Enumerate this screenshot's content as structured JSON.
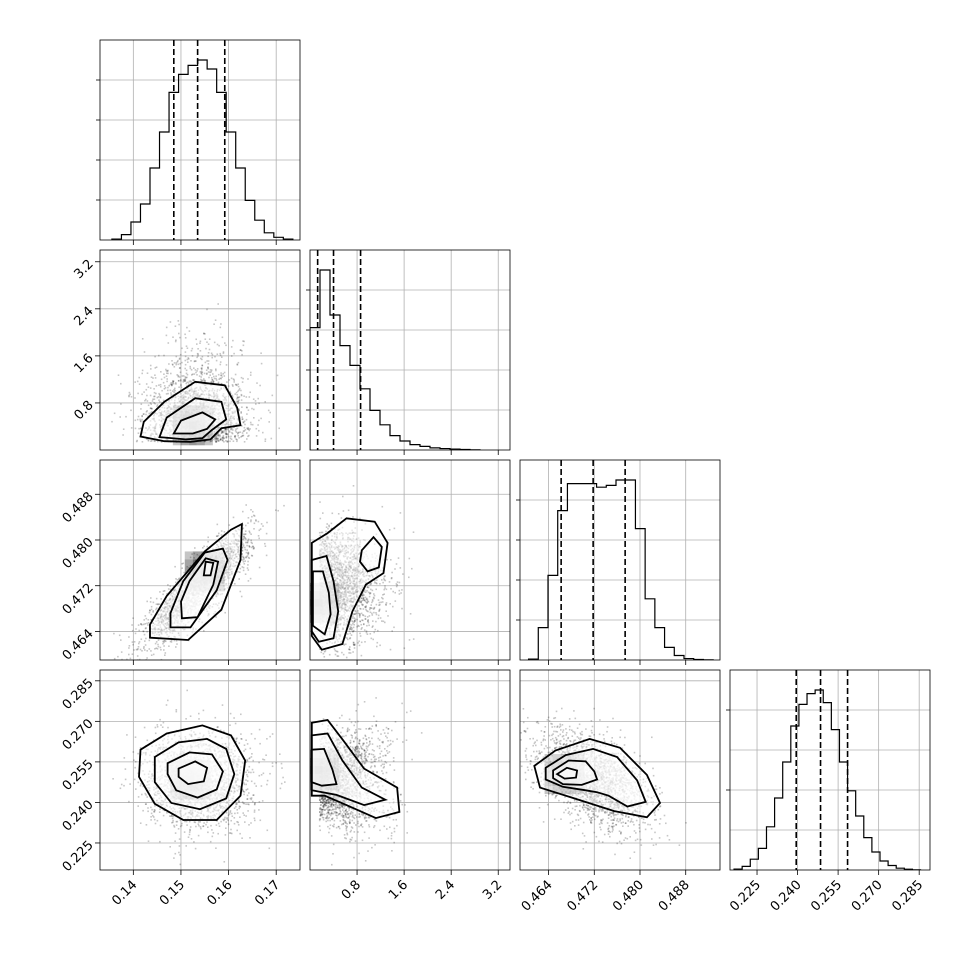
{
  "chart_data": {
    "type": "corner",
    "parameters": 4,
    "grid": true,
    "quantile_lines": "dashed",
    "axes": [
      {
        "range": [
          0.133,
          0.175
        ],
        "ticks": [
          0.14,
          0.15,
          0.16,
          0.17
        ],
        "tick_labels": [
          "0.14",
          "0.15",
          "0.16",
          "0.17"
        ]
      },
      {
        "range": [
          0.0,
          3.4
        ],
        "ticks": [
          0.8,
          1.6,
          2.4,
          3.2
        ],
        "tick_labels": [
          "0.8",
          "1.6",
          "2.4",
          "3.2"
        ]
      },
      {
        "range": [
          0.459,
          0.494
        ],
        "ticks": [
          0.464,
          0.472,
          0.48,
          0.488
        ],
        "tick_labels": [
          "0.464",
          "0.472",
          "0.480",
          "0.488"
        ]
      },
      {
        "range": [
          0.215,
          0.289
        ],
        "ticks": [
          0.225,
          0.24,
          0.255,
          0.27,
          0.285
        ],
        "tick_labels": [
          "0.225",
          "0.240",
          "0.255",
          "0.270",
          "0.285"
        ]
      }
    ],
    "histograms": [
      {
        "param": 0,
        "bin_edges": [
          0.1355,
          0.1375,
          0.1395,
          0.1415,
          0.1435,
          0.1455,
          0.1475,
          0.1495,
          0.1515,
          0.1535,
          0.1555,
          0.1575,
          0.1595,
          0.1615,
          0.1635,
          0.1655,
          0.1675,
          0.1695,
          0.1715,
          0.1735
        ],
        "counts": [
          0.005,
          0.03,
          0.1,
          0.2,
          0.4,
          0.6,
          0.82,
          0.92,
          0.97,
          1.0,
          0.95,
          0.82,
          0.6,
          0.4,
          0.22,
          0.11,
          0.04,
          0.015,
          0.005
        ],
        "quantiles": [
          0.1485,
          0.1535,
          0.1592
        ]
      },
      {
        "param": 1,
        "bin_edges": [
          0.0,
          0.17,
          0.34,
          0.51,
          0.68,
          0.85,
          1.02,
          1.19,
          1.36,
          1.53,
          1.7,
          1.87,
          2.04,
          2.21,
          2.38,
          2.55,
          2.72,
          2.89
        ],
        "counts": [
          0.68,
          1.0,
          0.75,
          0.58,
          0.47,
          0.34,
          0.22,
          0.14,
          0.08,
          0.05,
          0.03,
          0.02,
          0.012,
          0.008,
          0.005,
          0.003,
          0.001
        ],
        "quantiles": [
          0.13,
          0.4,
          0.86
        ]
      },
      {
        "param": 2,
        "bin_edges": [
          0.4605,
          0.4622,
          0.4639,
          0.4656,
          0.4673,
          0.469,
          0.4707,
          0.4724,
          0.4741,
          0.4758,
          0.4775,
          0.4792,
          0.4809,
          0.4826,
          0.4843,
          0.486,
          0.4877,
          0.4894,
          0.4911,
          0.4928
        ],
        "counts": [
          0.005,
          0.18,
          0.47,
          0.83,
          0.98,
          0.98,
          0.98,
          0.96,
          0.97,
          1.0,
          1.0,
          0.73,
          0.34,
          0.18,
          0.07,
          0.025,
          0.008,
          0.003,
          0.001
        ],
        "quantiles": [
          0.4662,
          0.4718,
          0.4774
        ]
      },
      {
        "param": 3,
        "bin_edges": [
          0.2165,
          0.2195,
          0.2225,
          0.2255,
          0.2285,
          0.2315,
          0.2345,
          0.2375,
          0.2405,
          0.2435,
          0.2465,
          0.2495,
          0.2525,
          0.2555,
          0.2585,
          0.2615,
          0.2645,
          0.2675,
          0.2705,
          0.2735,
          0.2765,
          0.2795,
          0.2825,
          0.2855
        ],
        "counts": [
          0.005,
          0.02,
          0.06,
          0.12,
          0.24,
          0.4,
          0.6,
          0.8,
          0.92,
          0.98,
          1.0,
          0.93,
          0.78,
          0.6,
          0.44,
          0.3,
          0.18,
          0.1,
          0.05,
          0.025,
          0.01,
          0.004,
          0.001
        ],
        "quantiles": [
          0.2395,
          0.2485,
          0.2585
        ]
      }
    ],
    "pairs": [
      {
        "x": 0,
        "y": 1,
        "cx": 0.153,
        "cy": 0.52,
        "sx": 0.0055,
        "sy": 0.48,
        "rho": -0.05,
        "shape": "skewed-upward",
        "mode": [
          0.1525,
          0.42
        ]
      },
      {
        "x": 0,
        "y": 2,
        "cx": 0.1535,
        "cy": 0.4718,
        "sx": 0.0055,
        "sy": 0.0048,
        "rho": 0.86,
        "shape": "elongated-diagonal",
        "mode": [
          0.155,
          0.4745
        ]
      },
      {
        "x": 0,
        "y": 3,
        "cx": 0.1535,
        "cy": 0.2485,
        "sx": 0.0055,
        "sy": 0.0088,
        "rho": 0.0,
        "shape": "round",
        "mode": [
          0.152,
          0.2485
        ]
      },
      {
        "x": 1,
        "y": 2,
        "cx": 0.55,
        "cy": 0.4718,
        "sx": 0.45,
        "sy": 0.0048,
        "rho": 0.1,
        "shape": "bimodal",
        "mode": [
          0.15,
          0.469
        ]
      },
      {
        "x": 1,
        "y": 3,
        "cx": 0.55,
        "cy": 0.2485,
        "sx": 0.45,
        "sy": 0.0088,
        "rho": -0.55,
        "shape": "curved-left-edge",
        "mode": [
          0.15,
          0.252
        ]
      },
      {
        "x": 2,
        "y": 3,
        "cx": 0.4718,
        "cy": 0.2485,
        "sx": 0.0048,
        "sy": 0.0088,
        "rho": -0.45,
        "shape": "irregular",
        "mode": [
          0.4668,
          0.2505
        ]
      }
    ],
    "contours": [
      {
        "x": 0,
        "y": 1,
        "levels": [
          [
            [
              0.1415,
              0.23
            ],
            [
              0.1422,
              0.48
            ],
            [
              0.1465,
              0.82
            ],
            [
              0.153,
              1.16
            ],
            [
              0.1592,
              1.1
            ],
            [
              0.1618,
              0.72
            ],
            [
              0.1625,
              0.42
            ],
            [
              0.1585,
              0.37
            ],
            [
              0.1562,
              0.18
            ],
            [
              0.152,
              0.14
            ],
            [
              0.1465,
              0.15
            ]
          ],
          [
            [
              0.1455,
              0.22
            ],
            [
              0.147,
              0.55
            ],
            [
              0.153,
              0.88
            ],
            [
              0.1585,
              0.82
            ],
            [
              0.1595,
              0.52
            ],
            [
              0.1565,
              0.34
            ],
            [
              0.1545,
              0.2
            ],
            [
              0.151,
              0.18
            ]
          ],
          [
            [
              0.1485,
              0.28
            ],
            [
              0.15,
              0.5
            ],
            [
              0.1545,
              0.64
            ],
            [
              0.1572,
              0.52
            ],
            [
              0.1555,
              0.36
            ],
            [
              0.1525,
              0.28
            ]
          ]
        ]
      },
      {
        "x": 0,
        "y": 2,
        "levels": [
          [
            [
              0.1435,
              0.4629
            ],
            [
              0.1515,
              0.4625
            ],
            [
              0.1585,
              0.4678
            ],
            [
              0.1625,
              0.4765
            ],
            [
              0.1628,
              0.4828
            ],
            [
              0.1605,
              0.4818
            ],
            [
              0.155,
              0.478
            ],
            [
              0.147,
              0.4702
            ],
            [
              0.1435,
              0.4652
            ]
          ],
          [
            [
              0.1478,
              0.4647
            ],
            [
              0.152,
              0.4647
            ],
            [
              0.1575,
              0.4712
            ],
            [
              0.1598,
              0.4765
            ],
            [
              0.1588,
              0.4785
            ],
            [
              0.155,
              0.4778
            ],
            [
              0.1505,
              0.4728
            ],
            [
              0.1478,
              0.4672
            ]
          ],
          [
            [
              0.1502,
              0.4663
            ],
            [
              0.1535,
              0.4665
            ],
            [
              0.1568,
              0.4722
            ],
            [
              0.1578,
              0.4762
            ],
            [
              0.1552,
              0.4768
            ],
            [
              0.1518,
              0.4728
            ],
            [
              0.15,
              0.4692
            ]
          ],
          [
            [
              0.1548,
              0.4738
            ],
            [
              0.1562,
              0.4738
            ],
            [
              0.1568,
              0.476
            ],
            [
              0.1552,
              0.4762
            ]
          ]
        ]
      },
      {
        "x": 0,
        "y": 3,
        "levels": [
          [
            [
              0.1415,
              0.2595
            ],
            [
              0.147,
              0.2655
            ],
            [
              0.1545,
              0.2685
            ],
            [
              0.1605,
              0.2648
            ],
            [
              0.1635,
              0.2555
            ],
            [
              0.1625,
              0.2425
            ],
            [
              0.1575,
              0.2335
            ],
            [
              0.1505,
              0.2335
            ],
            [
              0.1445,
              0.2395
            ],
            [
              0.1412,
              0.2495
            ]
          ],
          [
            [
              0.1445,
              0.2568
            ],
            [
              0.1495,
              0.2622
            ],
            [
              0.1555,
              0.2635
            ],
            [
              0.1595,
              0.2598
            ],
            [
              0.1612,
              0.2505
            ],
            [
              0.1595,
              0.2415
            ],
            [
              0.154,
              0.2375
            ],
            [
              0.148,
              0.2398
            ],
            [
              0.1445,
              0.2475
            ]
          ],
          [
            [
              0.1472,
              0.2545
            ],
            [
              0.1518,
              0.2585
            ],
            [
              0.1565,
              0.2578
            ],
            [
              0.1588,
              0.2515
            ],
            [
              0.1575,
              0.2448
            ],
            [
              0.1535,
              0.2418
            ],
            [
              0.149,
              0.2445
            ],
            [
              0.1472,
              0.2505
            ]
          ],
          [
            [
              0.1495,
              0.2525
            ],
            [
              0.153,
              0.2552
            ],
            [
              0.1555,
              0.2528
            ],
            [
              0.1548,
              0.2478
            ],
            [
              0.1515,
              0.2468
            ],
            [
              0.1495,
              0.2495
            ]
          ]
        ]
      },
      {
        "x": 1,
        "y": 2,
        "levels": [
          [
            [
              0.03,
              0.4795
            ],
            [
              0.3,
              0.4812
            ],
            [
              0.62,
              0.4838
            ],
            [
              1.1,
              0.4832
            ],
            [
              1.32,
              0.4795
            ],
            [
              1.25,
              0.4742
            ],
            [
              0.95,
              0.4722
            ],
            [
              0.72,
              0.4675
            ],
            [
              0.55,
              0.4618
            ],
            [
              0.2,
              0.4608
            ],
            [
              0.03,
              0.4632
            ]
          ],
          [
            [
              0.03,
              0.4765
            ],
            [
              0.28,
              0.4772
            ],
            [
              0.4,
              0.4728
            ],
            [
              0.48,
              0.4675
            ],
            [
              0.4,
              0.4628
            ],
            [
              0.15,
              0.4622
            ],
            [
              0.03,
              0.464
            ]
          ],
          [
            [
              0.88,
              0.4782
            ],
            [
              1.08,
              0.4805
            ],
            [
              1.22,
              0.4788
            ],
            [
              1.17,
              0.4752
            ],
            [
              0.98,
              0.4745
            ],
            [
              0.85,
              0.4762
            ]
          ],
          [
            [
              0.05,
              0.4745
            ],
            [
              0.22,
              0.4745
            ],
            [
              0.32,
              0.4708
            ],
            [
              0.35,
              0.467
            ],
            [
              0.25,
              0.4635
            ],
            [
              0.05,
              0.465
            ]
          ]
        ]
      },
      {
        "x": 1,
        "y": 3,
        "levels": [
          [
            [
              0.03,
              0.2695
            ],
            [
              0.3,
              0.2705
            ],
            [
              0.58,
              0.2625
            ],
            [
              0.92,
              0.2525
            ],
            [
              1.48,
              0.2455
            ],
            [
              1.52,
              0.2365
            ],
            [
              1.12,
              0.2342
            ],
            [
              0.6,
              0.2392
            ],
            [
              0.25,
              0.2425
            ],
            [
              0.03,
              0.2425
            ]
          ],
          [
            [
              0.03,
              0.2648
            ],
            [
              0.3,
              0.2655
            ],
            [
              0.55,
              0.2555
            ],
            [
              0.88,
              0.2455
            ],
            [
              1.28,
              0.241
            ],
            [
              0.92,
              0.239
            ],
            [
              0.45,
              0.2428
            ],
            [
              0.03,
              0.2445
            ]
          ],
          [
            [
              0.03,
              0.2595
            ],
            [
              0.24,
              0.2598
            ],
            [
              0.38,
              0.2522
            ],
            [
              0.45,
              0.2468
            ],
            [
              0.2,
              0.2462
            ],
            [
              0.03,
              0.2475
            ]
          ]
        ]
      },
      {
        "x": 2,
        "y": 3,
        "levels": [
          [
            [
              0.4615,
              0.2535
            ],
            [
              0.4652,
              0.2592
            ],
            [
              0.4712,
              0.2635
            ],
            [
              0.4765,
              0.2602
            ],
            [
              0.4812,
              0.2502
            ],
            [
              0.4835,
              0.2398
            ],
            [
              0.4812,
              0.2345
            ],
            [
              0.4755,
              0.2368
            ],
            [
              0.4685,
              0.2415
            ],
            [
              0.4625,
              0.2455
            ]
          ],
          [
            [
              0.4635,
              0.2528
            ],
            [
              0.467,
              0.2575
            ],
            [
              0.4718,
              0.2598
            ],
            [
              0.476,
              0.2568
            ],
            [
              0.4795,
              0.2482
            ],
            [
              0.481,
              0.2402
            ],
            [
              0.4778,
              0.2385
            ],
            [
              0.4745,
              0.2425
            ],
            [
              0.4725,
              0.2438
            ],
            [
              0.4705,
              0.2445
            ],
            [
              0.4665,
              0.2458
            ],
            [
              0.4635,
              0.2485
            ]
          ],
          [
            [
              0.4648,
              0.2518
            ],
            [
              0.4675,
              0.2555
            ],
            [
              0.4705,
              0.2552
            ],
            [
              0.472,
              0.2515
            ],
            [
              0.4725,
              0.2485
            ],
            [
              0.4698,
              0.2465
            ],
            [
              0.4665,
              0.2468
            ],
            [
              0.4648,
              0.249
            ]
          ],
          [
            [
              0.4655,
              0.2505
            ],
            [
              0.4672,
              0.2528
            ],
            [
              0.469,
              0.2518
            ],
            [
              0.4688,
              0.2492
            ],
            [
              0.4668,
              0.2488
            ]
          ]
        ]
      }
    ],
    "colors": {
      "line": "#000000",
      "grid": "#b0b0b0",
      "points": "#000000",
      "background": "#ffffff"
    }
  }
}
